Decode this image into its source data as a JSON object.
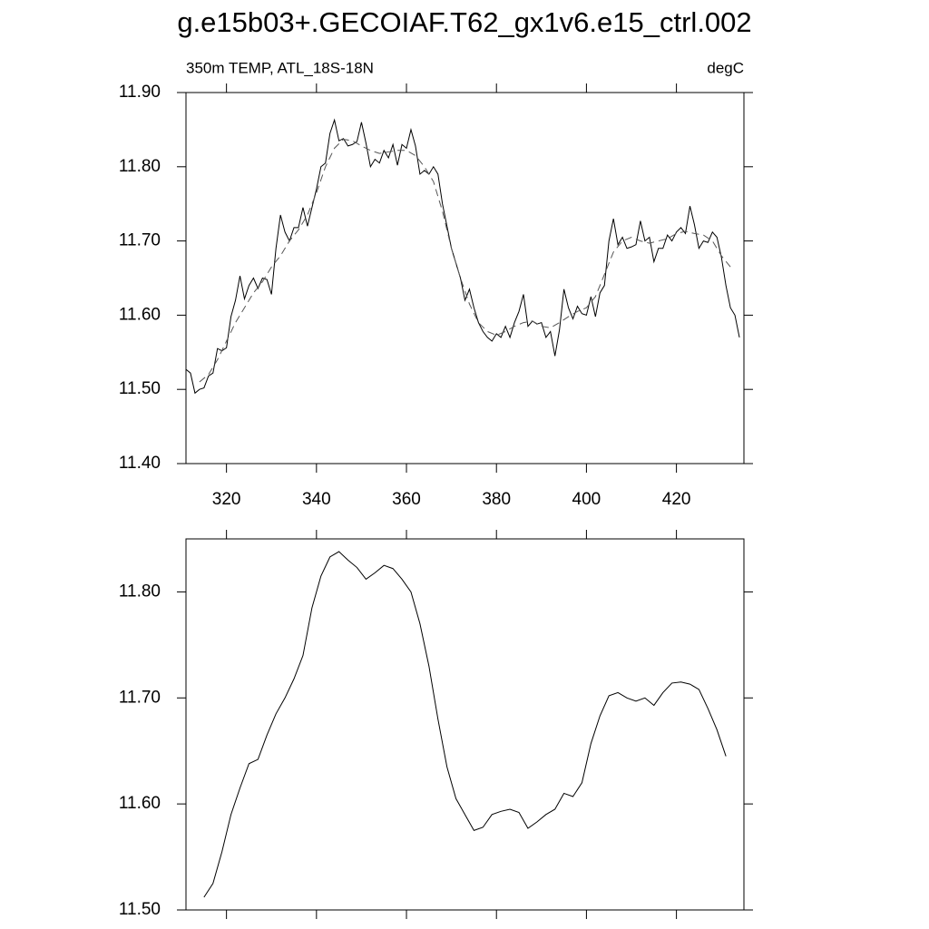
{
  "title": "g.e15b03+.GECOIAF.T62_gx1v6.e15_ctrl.002",
  "chart_data": [
    {
      "type": "line",
      "subtitle_left": "350m TEMP, ATL_18S-18N",
      "subtitle_right": "degC",
      "xlim": [
        311,
        435
      ],
      "xticks": [
        320,
        340,
        360,
        380,
        400,
        420
      ],
      "ylim": [
        11.4,
        11.9
      ],
      "yticks": [
        {
          "value": 11.4,
          "label": "11.40"
        },
        {
          "value": 11.5,
          "label": "11.50"
        },
        {
          "value": 11.6,
          "label": "11.60"
        },
        {
          "value": 11.7,
          "label": "11.70"
        },
        {
          "value": 11.8,
          "label": "11.80"
        },
        {
          "value": 11.9,
          "label": "11.90"
        }
      ],
      "series": [
        {
          "color": "#000000",
          "line_style": "solid",
          "x": [
            311,
            312,
            313,
            314,
            315,
            316,
            317,
            318,
            319,
            320,
            321,
            322,
            323,
            324,
            325,
            326,
            327,
            328,
            329,
            330,
            331,
            332,
            333,
            334,
            335,
            336,
            337,
            338,
            339,
            340,
            341,
            342,
            343,
            344,
            345,
            346,
            347,
            348,
            349,
            350,
            351,
            352,
            353,
            354,
            355,
            356,
            357,
            358,
            359,
            360,
            361,
            362,
            363,
            364,
            365,
            366,
            367,
            368,
            369,
            370,
            371,
            372,
            373,
            374,
            375,
            376,
            377,
            378,
            379,
            380,
            381,
            382,
            383,
            384,
            385,
            386,
            387,
            388,
            389,
            390,
            391,
            392,
            393,
            394,
            395,
            396,
            397,
            398,
            399,
            400,
            401,
            402,
            403,
            404,
            405,
            406,
            407,
            408,
            409,
            410,
            411,
            412,
            413,
            414,
            415,
            416,
            417,
            418,
            419,
            420,
            421,
            422,
            423,
            424,
            425,
            426,
            427,
            428,
            429,
            430,
            431,
            432,
            433,
            434
          ],
          "values": [
            11.527,
            11.522,
            11.495,
            11.5,
            11.502,
            11.518,
            11.522,
            11.555,
            11.552,
            11.556,
            11.598,
            11.62,
            11.653,
            11.622,
            11.64,
            11.65,
            11.636,
            11.65,
            11.648,
            11.628,
            11.69,
            11.735,
            11.712,
            11.7,
            11.718,
            11.718,
            11.745,
            11.72,
            11.745,
            11.77,
            11.8,
            11.805,
            11.845,
            11.863,
            11.835,
            11.838,
            11.828,
            11.83,
            11.834,
            11.86,
            11.832,
            11.8,
            11.81,
            11.805,
            11.822,
            11.812,
            11.83,
            11.802,
            11.83,
            11.825,
            11.85,
            11.828,
            11.79,
            11.795,
            11.79,
            11.8,
            11.79,
            11.75,
            11.72,
            11.69,
            11.67,
            11.65,
            11.62,
            11.635,
            11.61,
            11.59,
            11.578,
            11.57,
            11.565,
            11.575,
            11.57,
            11.585,
            11.57,
            11.59,
            11.605,
            11.628,
            11.585,
            11.592,
            11.588,
            11.59,
            11.57,
            11.578,
            11.545,
            11.58,
            11.635,
            11.61,
            11.595,
            11.612,
            11.602,
            11.6,
            11.625,
            11.598,
            11.63,
            11.64,
            11.7,
            11.73,
            11.695,
            11.705,
            11.69,
            11.692,
            11.695,
            11.727,
            11.7,
            11.705,
            11.672,
            11.69,
            11.69,
            11.708,
            11.7,
            11.712,
            11.718,
            11.71,
            11.747,
            11.722,
            11.69,
            11.7,
            11.698,
            11.712,
            11.705,
            11.678,
            11.64,
            11.61,
            11.6,
            11.57
          ]
        },
        {
          "color": "#555555",
          "line_style": "dashed",
          "x": [
            314,
            316,
            318,
            320,
            322,
            324,
            326,
            328,
            330,
            332,
            334,
            336,
            338,
            340,
            342,
            344,
            346,
            348,
            350,
            352,
            354,
            356,
            358,
            360,
            362,
            364,
            366,
            368,
            370,
            372,
            374,
            376,
            378,
            380,
            382,
            384,
            386,
            388,
            390,
            392,
            394,
            396,
            398,
            400,
            402,
            404,
            406,
            408,
            410,
            412,
            414,
            416,
            418,
            420,
            422,
            424,
            426,
            428,
            430,
            432
          ],
          "values": [
            11.51,
            11.52,
            11.54,
            11.565,
            11.59,
            11.61,
            11.63,
            11.645,
            11.665,
            11.68,
            11.7,
            11.715,
            11.735,
            11.765,
            11.8,
            11.825,
            11.837,
            11.835,
            11.828,
            11.822,
            11.818,
            11.82,
            11.822,
            11.822,
            11.815,
            11.8,
            11.78,
            11.74,
            11.69,
            11.65,
            11.615,
            11.59,
            11.578,
            11.573,
            11.578,
            11.585,
            11.59,
            11.592,
            11.585,
            11.583,
            11.59,
            11.598,
            11.605,
            11.61,
            11.625,
            11.655,
            11.685,
            11.7,
            11.705,
            11.7,
            11.697,
            11.7,
            11.703,
            11.71,
            11.713,
            11.71,
            11.708,
            11.7,
            11.68,
            11.665
          ]
        }
      ]
    },
    {
      "type": "line",
      "xlim": [
        311,
        435
      ],
      "xticks": [
        320,
        340,
        360,
        380,
        400,
        420
      ],
      "ylim": [
        11.5,
        11.85
      ],
      "yticks": [
        {
          "value": 11.5,
          "label": "11.50"
        },
        {
          "value": 11.6,
          "label": "11.60"
        },
        {
          "value": 11.7,
          "label": "11.70"
        },
        {
          "value": 11.8,
          "label": "11.80"
        }
      ],
      "series": [
        {
          "color": "#000000",
          "line_style": "solid",
          "x": [
            315,
            317,
            319,
            321,
            323,
            325,
            327,
            329,
            331,
            333,
            335,
            337,
            339,
            341,
            343,
            345,
            347,
            349,
            351,
            353,
            355,
            357,
            359,
            361,
            363,
            365,
            367,
            369,
            371,
            373,
            375,
            377,
            379,
            381,
            383,
            385,
            387,
            389,
            391,
            393,
            395,
            397,
            399,
            401,
            403,
            405,
            407,
            409,
            411,
            413,
            415,
            417,
            419,
            421,
            423,
            425,
            427,
            429,
            431
          ],
          "values": [
            11.512,
            11.525,
            11.555,
            11.59,
            11.615,
            11.638,
            11.642,
            11.665,
            11.685,
            11.7,
            11.718,
            11.74,
            11.785,
            11.815,
            11.833,
            11.838,
            11.83,
            11.823,
            11.812,
            11.818,
            11.825,
            11.822,
            11.812,
            11.8,
            11.77,
            11.73,
            11.68,
            11.635,
            11.605,
            11.59,
            11.575,
            11.578,
            11.59,
            11.593,
            11.595,
            11.592,
            11.577,
            11.583,
            11.59,
            11.595,
            11.61,
            11.607,
            11.62,
            11.657,
            11.683,
            11.702,
            11.705,
            11.7,
            11.697,
            11.7,
            11.693,
            11.705,
            11.714,
            11.715,
            11.713,
            11.708,
            11.69,
            11.67,
            11.645
          ]
        }
      ]
    }
  ]
}
